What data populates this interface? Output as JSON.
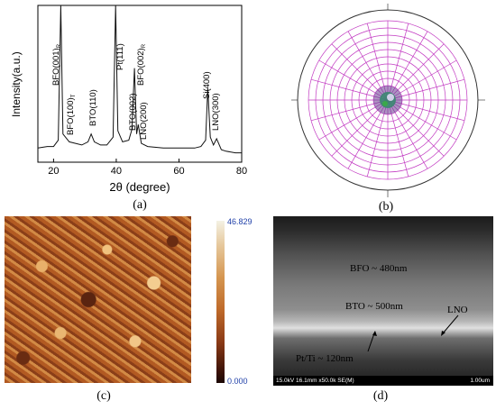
{
  "captions": {
    "a": "(a)",
    "b": "(b)",
    "c": "(c)",
    "d": "(d)"
  },
  "xrd": {
    "ylabel": "Intensity(a.u.)",
    "xlabel": "2θ (degree)",
    "xticks": [
      "20",
      "40",
      "60",
      "80"
    ],
    "peaks": [
      "BFO(001)R",
      "BFO(100)T",
      "BTO(110)",
      "Pt(111)",
      "BTO(002)",
      "BFO(002)R",
      "LNO(200)",
      "Si(400)",
      "LNO(300)"
    ]
  },
  "chart_data": {
    "type": "line",
    "title": "",
    "xlabel": "2θ (degree)",
    "ylabel": "Intensity(a.u.)",
    "xlim": [
      15,
      80
    ],
    "ylim": [
      0,
      100
    ],
    "x": [
      15,
      18,
      20,
      21.5,
      22.3,
      23,
      25,
      27,
      29,
      31,
      32,
      33,
      35,
      37,
      39,
      39.8,
      40.5,
      42,
      44,
      45,
      45.8,
      46.5,
      47,
      48,
      50,
      55,
      60,
      65,
      67,
      68.5,
      69.2,
      70,
      71,
      72,
      73.5,
      75,
      78,
      80
    ],
    "series": [
      {
        "values": [
          9,
          10,
          10,
          14,
          100,
          18,
          13,
          12,
          11,
          13,
          18,
          13,
          11,
          11,
          16,
          100,
          20,
          13,
          14,
          21,
          60,
          18,
          24,
          12,
          10,
          9,
          9,
          9,
          10,
          14,
          47,
          16,
          11,
          15,
          8,
          7,
          6,
          6
        ]
      }
    ]
  },
  "afm": {
    "scale_max": "46.829",
    "scale_min": "0.000"
  },
  "sem": {
    "bfo": "BFO ~ 480nm",
    "bto": "BTO ~ 500nm",
    "lno": "LNO",
    "pt": "Pt/Ti ~ 120nm",
    "info": "15.0kV 16.1mm x50.0k SE(M)",
    "scale": "1.00um"
  }
}
